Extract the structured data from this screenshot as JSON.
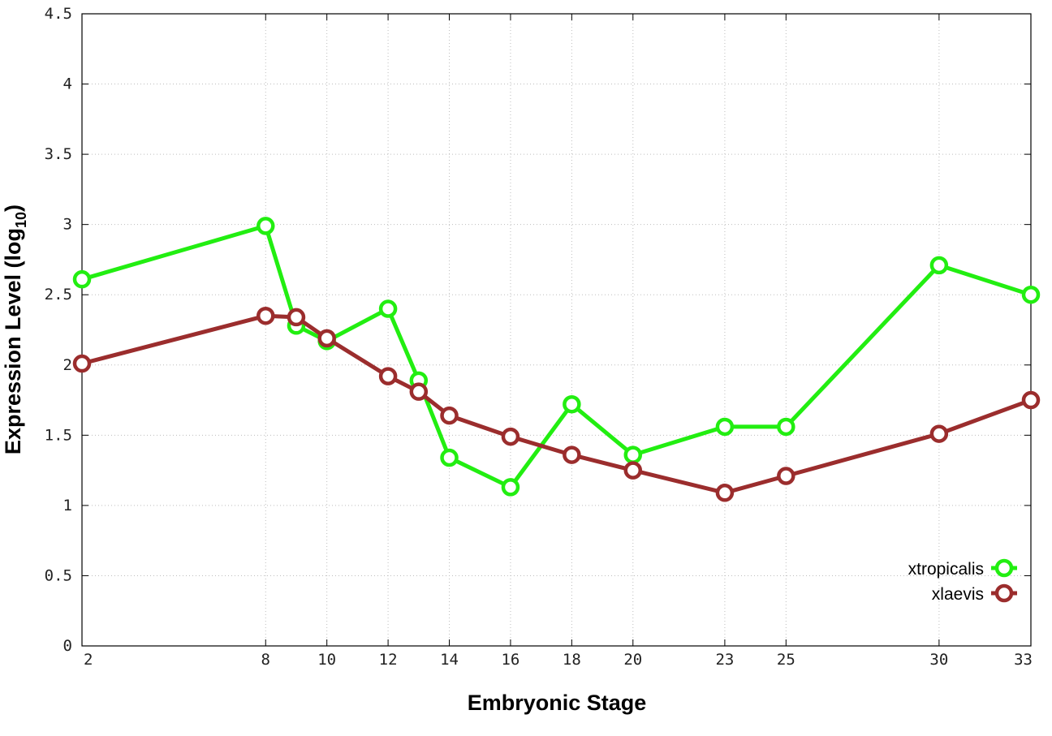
{
  "chart_data": {
    "type": "line",
    "xlabel": "Embryonic Stage",
    "ylabel_main": "Expression Level (log",
    "ylabel_sub": "10",
    "ylabel_close": ")",
    "xlim": [
      2,
      33
    ],
    "ylim": [
      0,
      4.5
    ],
    "x_ticks": [
      2,
      8,
      10,
      12,
      14,
      16,
      18,
      20,
      23,
      25,
      30,
      33
    ],
    "y_ticks": [
      0,
      0.5,
      1,
      1.5,
      2,
      2.5,
      3,
      3.5,
      4,
      4.5
    ],
    "y_tick_labels": [
      "0",
      "0.5",
      "1",
      "1.5",
      "2",
      "2.5",
      "3",
      "3.5",
      "4",
      "4.5"
    ],
    "grid": true,
    "legend_position": "bottom-right",
    "series": [
      {
        "name": "xtropicalis",
        "color": "#22ee11",
        "x": [
          2,
          8,
          9,
          10,
          12,
          13,
          14,
          16,
          18,
          20,
          23,
          25,
          30,
          33
        ],
        "y": [
          2.61,
          2.99,
          2.28,
          2.17,
          2.4,
          1.89,
          1.34,
          1.13,
          1.72,
          1.36,
          1.56,
          1.56,
          2.71,
          2.5
        ]
      },
      {
        "name": "xlaevis",
        "color": "#9b2d2d",
        "x": [
          2,
          8,
          9,
          10,
          12,
          13,
          14,
          16,
          18,
          20,
          23,
          25,
          30,
          33
        ],
        "y": [
          2.01,
          2.35,
          2.34,
          2.19,
          1.92,
          1.81,
          1.64,
          1.49,
          1.36,
          1.25,
          1.09,
          1.21,
          1.51,
          1.75
        ]
      }
    ]
  }
}
